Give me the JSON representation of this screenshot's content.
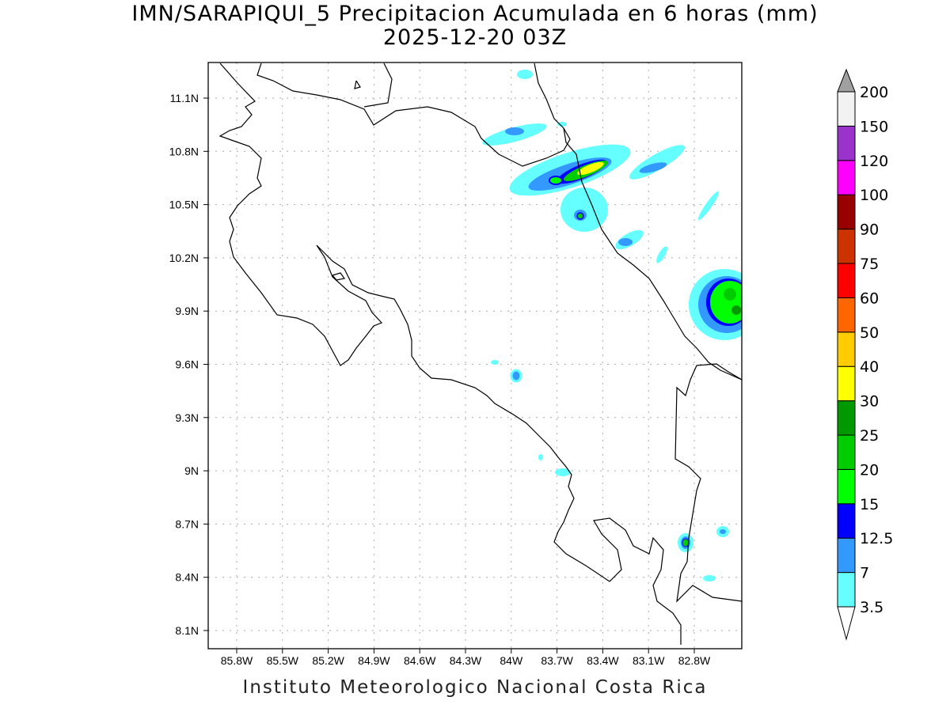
{
  "title": {
    "line1": "IMN/SARAPIQUI_5 Precipitacion Acumulada en 6 horas (mm)",
    "line2": "2025-12-20 03Z"
  },
  "footer": "Instituto Meteorologico Nacional Costa Rica",
  "axes": {
    "lon_labels": [
      "85.8W",
      "85.5W",
      "85.2W",
      "84.9W",
      "84.6W",
      "84.3W",
      "84W",
      "83.7W",
      "83.4W",
      "83.1W",
      "82.8W"
    ],
    "lat_labels": [
      "11.1N",
      "10.8N",
      "10.5N",
      "10.2N",
      "9.9N",
      "9.6N",
      "9.3N",
      "9N",
      "8.7N",
      "8.4N",
      "8.1N"
    ]
  },
  "colorbar": {
    "levels": [
      "3.5",
      "7",
      "12.5",
      "15",
      "20",
      "25",
      "30",
      "40",
      "50",
      "60",
      "75",
      "90",
      "100",
      "120",
      "150",
      "200"
    ],
    "colors": [
      "#66ffff",
      "#3399ff",
      "#0000ff",
      "#00ff00",
      "#00cc00",
      "#009900",
      "#ffff00",
      "#ffcc00",
      "#ff6600",
      "#ff0000",
      "#cc3300",
      "#990000",
      "#ff00ff",
      "#9933cc",
      "#f2f2f2"
    ],
    "over_color": "#a0a0a0",
    "under_color": "#ffffff"
  }
}
